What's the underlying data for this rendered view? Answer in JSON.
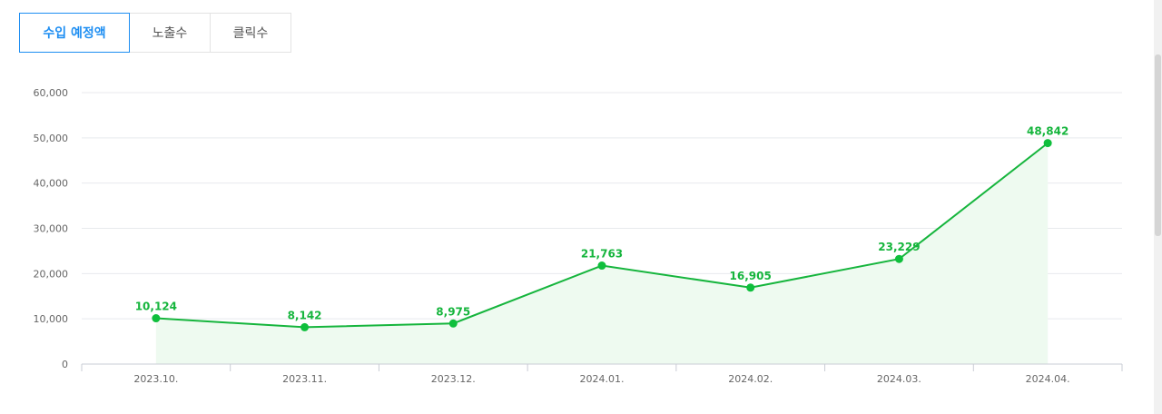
{
  "tabs": [
    {
      "label": "수입 예정액",
      "active": true
    },
    {
      "label": "노출수",
      "active": false
    },
    {
      "label": "클릭수",
      "active": false
    }
  ],
  "colors": {
    "accent": "#1e8ef2",
    "line": "#16b53d",
    "point": "#0fbf3c",
    "area": "#eefaf0",
    "grid": "#e8eaed"
  },
  "chart_data": {
    "type": "area",
    "categories": [
      "2023.10.",
      "2023.11.",
      "2023.12.",
      "2024.01.",
      "2024.02.",
      "2024.03.",
      "2024.04."
    ],
    "values": [
      10124,
      8142,
      8975,
      21763,
      16905,
      23229,
      48842
    ],
    "data_labels": [
      "10,124",
      "8,142",
      "8,975",
      "21,763",
      "16,905",
      "23,229",
      "48,842"
    ],
    "y_ticks": [
      "0",
      "10,000",
      "20,000",
      "30,000",
      "40,000",
      "50,000",
      "60,000"
    ],
    "ylim": [
      0,
      60000
    ],
    "grid": true,
    "legend": "none"
  }
}
